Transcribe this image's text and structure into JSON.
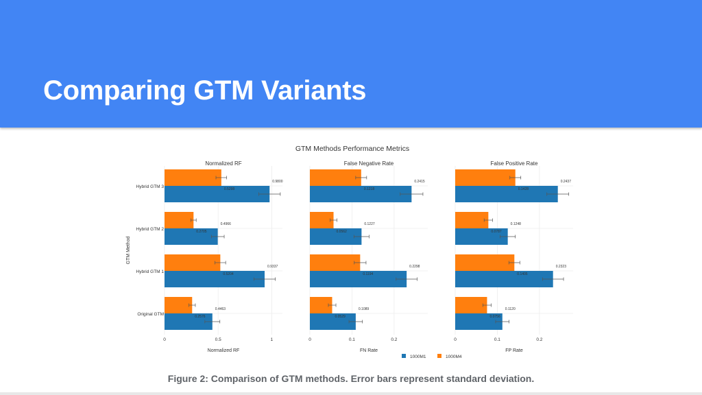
{
  "slide": {
    "title": "Comparing GTM Variants",
    "caption": "Figure 2: Comparison of GTM methods. Error bars represent standard deviation."
  },
  "colors": {
    "header": "#4285f4",
    "series_1000M1": "#1f77b4",
    "series_1000M4": "#ff7f0e"
  },
  "chart_data": {
    "type": "bar",
    "orientation": "horizontal",
    "title": "GTM Methods Performance Metrics",
    "ylabel": "GTM Method",
    "categories": [
      "Hybrid GTM 3",
      "Hybrid GTM 2",
      "Hybrid GTM 1",
      "Original GTM"
    ],
    "legend": {
      "placement": "bottom",
      "entries": [
        "1000M1",
        "1000M4"
      ]
    },
    "grid": true,
    "error_bars": "standard deviation",
    "panels": [
      {
        "title": "Normalized RF",
        "xlabel": "Normalized RF",
        "xlim": [
          0,
          1.1
        ],
        "ticks": [
          0,
          0.5,
          1
        ],
        "tick_labels": [
          "0",
          "0.5",
          "1"
        ],
        "series": [
          {
            "name": "1000M1",
            "values": [
              0.98,
              0.4966,
              0.9337,
              0.4463
            ],
            "errors": [
              0.1,
              0.06,
              0.1,
              0.07
            ],
            "labels": [
              "0.9800",
              "0.4966",
              "0.9337",
              "0.4463"
            ]
          },
          {
            "name": "1000M4",
            "values": [
              0.5298,
              0.2705,
              0.5204,
              0.2576
            ],
            "errors": [
              0.05,
              0.025,
              0.05,
              0.03
            ],
            "labels": [
              "0.5298",
              "0.2705",
              "0.5204",
              "0.2576"
            ]
          }
        ]
      },
      {
        "title": "False Negative Rate",
        "xlabel": "FN Rate",
        "xlim": [
          0,
          0.28
        ],
        "ticks": [
          0,
          0.1,
          0.2
        ],
        "tick_labels": [
          "0",
          "0.1",
          "0.2"
        ],
        "series": [
          {
            "name": "1000M1",
            "values": [
              0.2415,
              0.1227,
              0.2298,
              0.1089
            ],
            "errors": [
              0.027,
              0.018,
              0.025,
              0.016
            ],
            "labels": [
              "0.2415",
              "0.1227",
              "0.2298",
              "0.1089"
            ]
          },
          {
            "name": "1000M4",
            "values": [
              0.1218,
              0.0562,
              0.1194,
              0.0529
            ],
            "errors": [
              0.013,
              0.008,
              0.014,
              0.009
            ],
            "labels": [
              "0.1218",
              "0.0562",
              "0.1194",
              "0.0529"
            ]
          }
        ]
      },
      {
        "title": "False Positive Rate",
        "xlabel": "FP Rate",
        "xlim": [
          0,
          0.28
        ],
        "ticks": [
          0,
          0.1,
          0.2
        ],
        "tick_labels": [
          "0",
          "0.1",
          "0.2"
        ],
        "series": [
          {
            "name": "1000M1",
            "values": [
              0.2437,
              0.1248,
              0.2323,
              0.112
            ],
            "errors": [
              0.026,
              0.018,
              0.025,
              0.016
            ],
            "labels": [
              "0.2437",
              "0.1248",
              "0.2323",
              "0.1120"
            ]
          },
          {
            "name": "1000M4",
            "values": [
              0.1428,
              0.0787,
              0.1405,
              0.0756
            ],
            "errors": [
              0.013,
              0.01,
              0.013,
              0.01
            ],
            "labels": [
              "0.1428",
              "0.0787",
              "0.1405",
              "0.0756"
            ]
          }
        ]
      }
    ]
  }
}
